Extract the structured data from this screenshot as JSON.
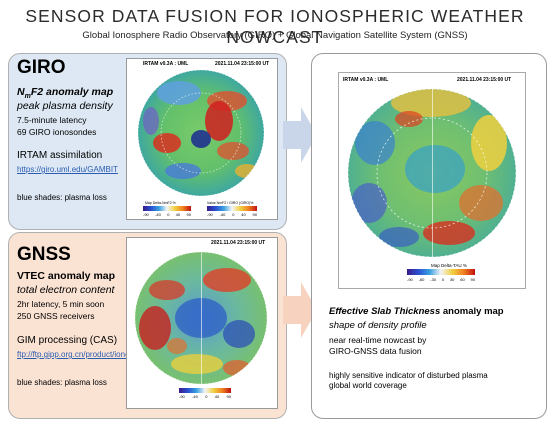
{
  "title": "SENSOR DATA FUSION FOR IONOSPHERIC WEATHER NOWCAST",
  "subtitle": "Global Ionosphere Radio Observatory (GIRO) + Global Navigation Satellite System (GNSS)",
  "giro": {
    "heading": "GIRO",
    "map_title_prefix": "N",
    "map_title_sub": "m",
    "map_title_suffix": "F2 anomaly map",
    "desc_italic": "peak plasma density",
    "line1": "7.5-minute latency",
    "line2": "69 GIRO ionosondes",
    "assim": "IRTAM assimilation",
    "link": "https://giro.uml.edu/GAMBIT",
    "note": "blue shades: plasma loss",
    "map_header_left": "IRTAM v0.3A : UML",
    "map_header_right": "2021.11.04 23:15:00 UT",
    "cb1_label": "Map Delta-NmF2 %",
    "cb2_label": "Value NmF2 / GIRO (GIRO)%",
    "cb1_ticks": [
      "-90",
      "-40",
      "0",
      "40",
      "90"
    ],
    "cb2_ticks": [
      "-90",
      "-40",
      "0",
      "40",
      "90"
    ]
  },
  "gnss": {
    "heading": "GNSS",
    "map_title": "VTEC anomaly map",
    "desc_italic": "total electron content",
    "line1": "2hr latency, 5 min soon",
    "line2": "250 GNSS receivers",
    "proc": "GIM processing (CAS)",
    "link": "ftp://ftp.gipp.org.cn/product/ionex/",
    "note": "blue shades: plasma loss",
    "map_header_right": "2021.11.04 23:15:00 UT",
    "cb_ticks": [
      "-90",
      "-40",
      "0",
      "40",
      "90"
    ]
  },
  "fusion": {
    "map_header_left": "IRTAM v0.3A : UML",
    "map_header_right": "2021.11.04 23:15:00 UT",
    "cb_label": "Map Delta-TAU %",
    "cb_ticks": [
      "-90",
      "-60",
      "-30",
      "0",
      "30",
      "60",
      "90"
    ],
    "title_bold": "Effective Slab Thickness",
    "title_rest": " anomaly map",
    "desc_italic": "shape of density profile",
    "line1": "near real-time nowcast by",
    "line2": "GIRO-GNSS data fusion",
    "line3": "highly sensitive indicator of disturbed plasma",
    "line4": "global world coverage"
  },
  "colors": {
    "giro_panel": "#dde8f4",
    "gnss_panel": "#fbe3d4",
    "arrow_blue": "#c9d6ea",
    "arrow_peach": "#f6d2bf",
    "link": "#2a5db0"
  }
}
